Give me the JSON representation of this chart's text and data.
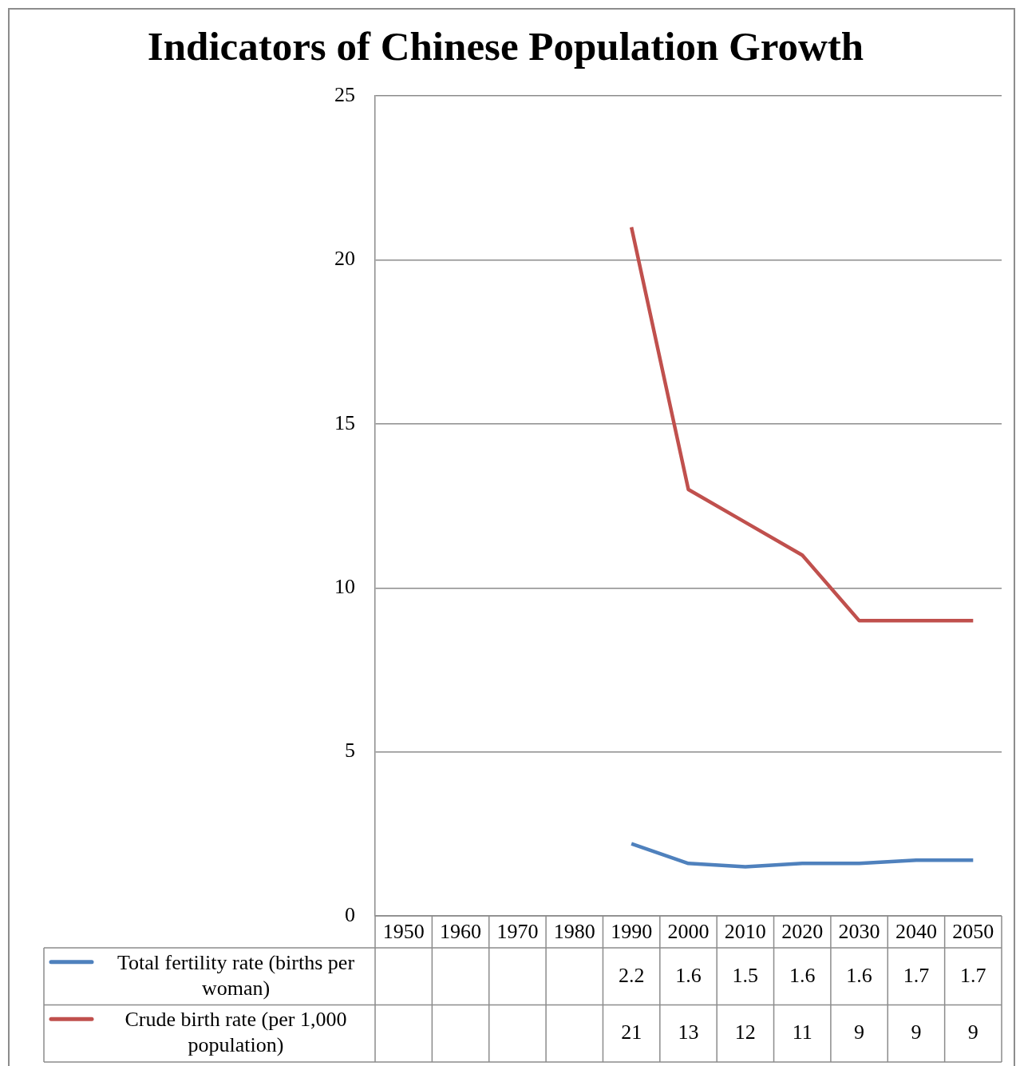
{
  "chart_data": {
    "type": "line",
    "title": "Indicators of Chinese Population Growth",
    "categories": [
      "1950",
      "1960",
      "1970",
      "1980",
      "1990",
      "2000",
      "2010",
      "2020",
      "2030",
      "2040",
      "2050"
    ],
    "series": [
      {
        "name": "Total fertility rate (births per woman)",
        "color": "#4f81bd",
        "values": [
          null,
          null,
          null,
          null,
          2.2,
          1.6,
          1.5,
          1.6,
          1.6,
          1.7,
          1.7
        ]
      },
      {
        "name": "Crude birth rate (per 1,000 population)",
        "color": "#c0504d",
        "values": [
          null,
          null,
          null,
          null,
          21,
          13,
          12,
          11,
          9,
          9,
          9
        ]
      }
    ],
    "ylim": [
      0,
      25
    ],
    "yticks": [
      0,
      5,
      10,
      15,
      20,
      25
    ],
    "grid": "y",
    "legend": "bottom",
    "data_labels": true
  }
}
